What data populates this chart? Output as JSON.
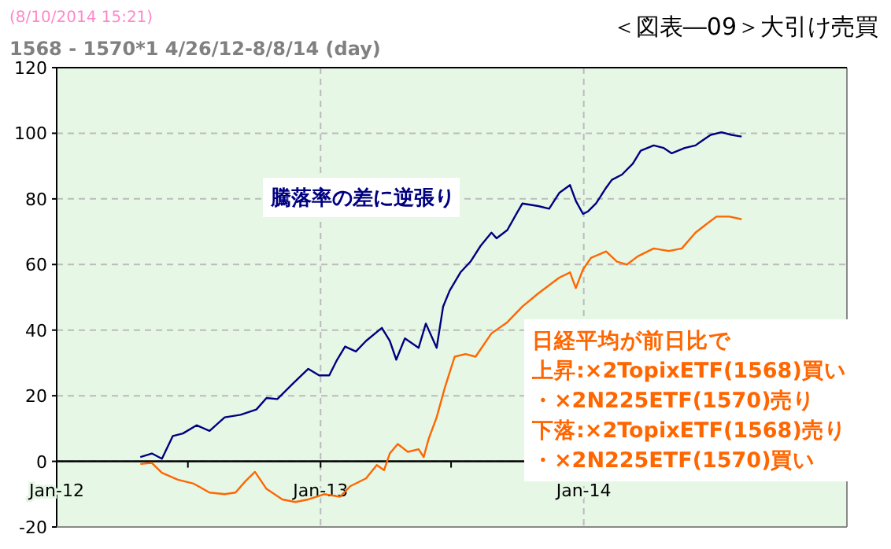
{
  "chart_data": {
    "type": "line",
    "title": "＜図表―09＞大引け売買",
    "subtitle": "1568 - 1570*1  4/26/12-8/8/14 (day)",
    "annotations": [
      "(8/10/2014 15:21)",
      "日経平均が前日比で",
      "上昇:×2TopixETF(1568)買い",
      "・×2N225ETF(1570)売り",
      "下落:×2TopixETF(1568)売り",
      "・×2N225ETF(1570)買い"
    ],
    "xlim": [
      "2012-01-01",
      "2015-01-01"
    ],
    "xticks": [
      {
        "value": "2012-01-01",
        "label": "Jan-12"
      },
      {
        "value": "2012-07-01",
        "label": null
      },
      {
        "value": "2013-01-01",
        "label": "Jan-13"
      },
      {
        "value": "2013-07-01",
        "label": null
      },
      {
        "value": "2014-01-01",
        "label": "Jan-14"
      }
    ],
    "ylim": [
      -20,
      120
    ],
    "yticks": [
      -20,
      0,
      20,
      40,
      60,
      80,
      100,
      120
    ],
    "grid": true,
    "series": [
      {
        "name": "騰落率の差に逆張り",
        "color": "#000080",
        "x": [
          "2012-04-26",
          "2012-05-12",
          "2012-05-26",
          "2012-06-10",
          "2012-06-24",
          "2012-07-13",
          "2012-07-31",
          "2012-08-21",
          "2012-09-12",
          "2012-10-04",
          "2012-10-18",
          "2012-11-02",
          "2012-11-24",
          "2012-12-15",
          "2012-12-30",
          "2013-01-13",
          "2013-01-24",
          "2013-02-04",
          "2013-02-19",
          "2013-03-05",
          "2013-03-27",
          "2013-04-07",
          "2013-04-16",
          "2013-04-28",
          "2013-05-17",
          "2013-05-27",
          "2013-06-11",
          "2013-06-20",
          "2013-06-29",
          "2013-07-14",
          "2013-07-28",
          "2013-08-11",
          "2013-08-26",
          "2013-09-02",
          "2013-09-17",
          "2013-10-01",
          "2013-10-08",
          "2013-10-30",
          "2013-11-14",
          "2013-11-28",
          "2013-12-13",
          "2013-12-21",
          "2013-12-31",
          "2014-01-07",
          "2014-01-18",
          "2014-02-01",
          "2014-02-09",
          "2014-02-23",
          "2014-03-10",
          "2014-03-21",
          "2014-04-08",
          "2014-04-22",
          "2014-05-03",
          "2014-05-21",
          "2014-06-05",
          "2014-06-12",
          "2014-06-26",
          "2014-07-11",
          "2014-07-25",
          "2014-08-08"
        ],
        "values": [
          1.3,
          2.4,
          0.8,
          7.7,
          8.5,
          11,
          9.3,
          13.4,
          14.2,
          15.8,
          19.3,
          19,
          23.8,
          28.2,
          26.2,
          26.2,
          31,
          35,
          33.5,
          36.7,
          40.7,
          36.7,
          31,
          37.5,
          34.6,
          42,
          34.6,
          47.2,
          52,
          57.6,
          60.9,
          65.7,
          69.7,
          68,
          70.5,
          76,
          78.6,
          77.8,
          77,
          81.8,
          84.2,
          79.4,
          75.4,
          76.2,
          78.6,
          83.4,
          85.8,
          87.4,
          90.7,
          94.7,
          96.3,
          95.5,
          93.9,
          95.5,
          96.3,
          97.4,
          99.5,
          100.3,
          99.5,
          99
        ]
      },
      {
        "color": "#ff6600",
        "x": [
          "2012-04-26",
          "2012-05-12",
          "2012-05-26",
          "2012-06-17",
          "2012-07-09",
          "2012-07-31",
          "2012-08-21",
          "2012-09-05",
          "2012-09-19",
          "2012-10-02",
          "2012-10-18",
          "2012-11-09",
          "2012-11-27",
          "2012-12-15",
          "2013-01-06",
          "2013-01-28",
          "2013-02-11",
          "2013-03-05",
          "2013-03-20",
          "2013-03-30",
          "2013-04-07",
          "2013-04-18",
          "2013-05-02",
          "2013-05-17",
          "2013-05-24",
          "2013-05-31",
          "2013-06-11",
          "2013-06-22",
          "2013-07-06",
          "2013-07-21",
          "2013-08-04",
          "2013-08-26",
          "2013-09-17",
          "2013-10-08",
          "2013-10-30",
          "2013-11-28",
          "2013-12-13",
          "2013-12-21",
          "2013-12-31",
          "2014-01-11",
          "2014-02-01",
          "2014-02-16",
          "2014-03-02",
          "2014-03-17",
          "2014-04-08",
          "2014-04-29",
          "2014-05-17",
          "2014-06-05",
          "2014-06-19",
          "2014-07-04",
          "2014-07-22",
          "2014-08-08"
        ],
        "values": [
          -0.8,
          -0.5,
          -3.5,
          -5.6,
          -6.8,
          -9.5,
          -10,
          -9.5,
          -6,
          -3.2,
          -8.4,
          -11.6,
          -12.4,
          -11.6,
          -10,
          -10.8,
          -7.6,
          -5.2,
          -1.1,
          -2.7,
          2.4,
          5.3,
          2.9,
          3.7,
          1.3,
          6.9,
          13.4,
          22.2,
          31.9,
          32.7,
          31.9,
          39,
          42.4,
          47.2,
          51.2,
          56,
          57.6,
          52.8,
          58.5,
          62,
          64,
          60.9,
          60,
          62.5,
          64.9,
          64.1,
          64.9,
          69.7,
          72.1,
          74.6,
          74.6,
          73.8
        ]
      }
    ]
  }
}
